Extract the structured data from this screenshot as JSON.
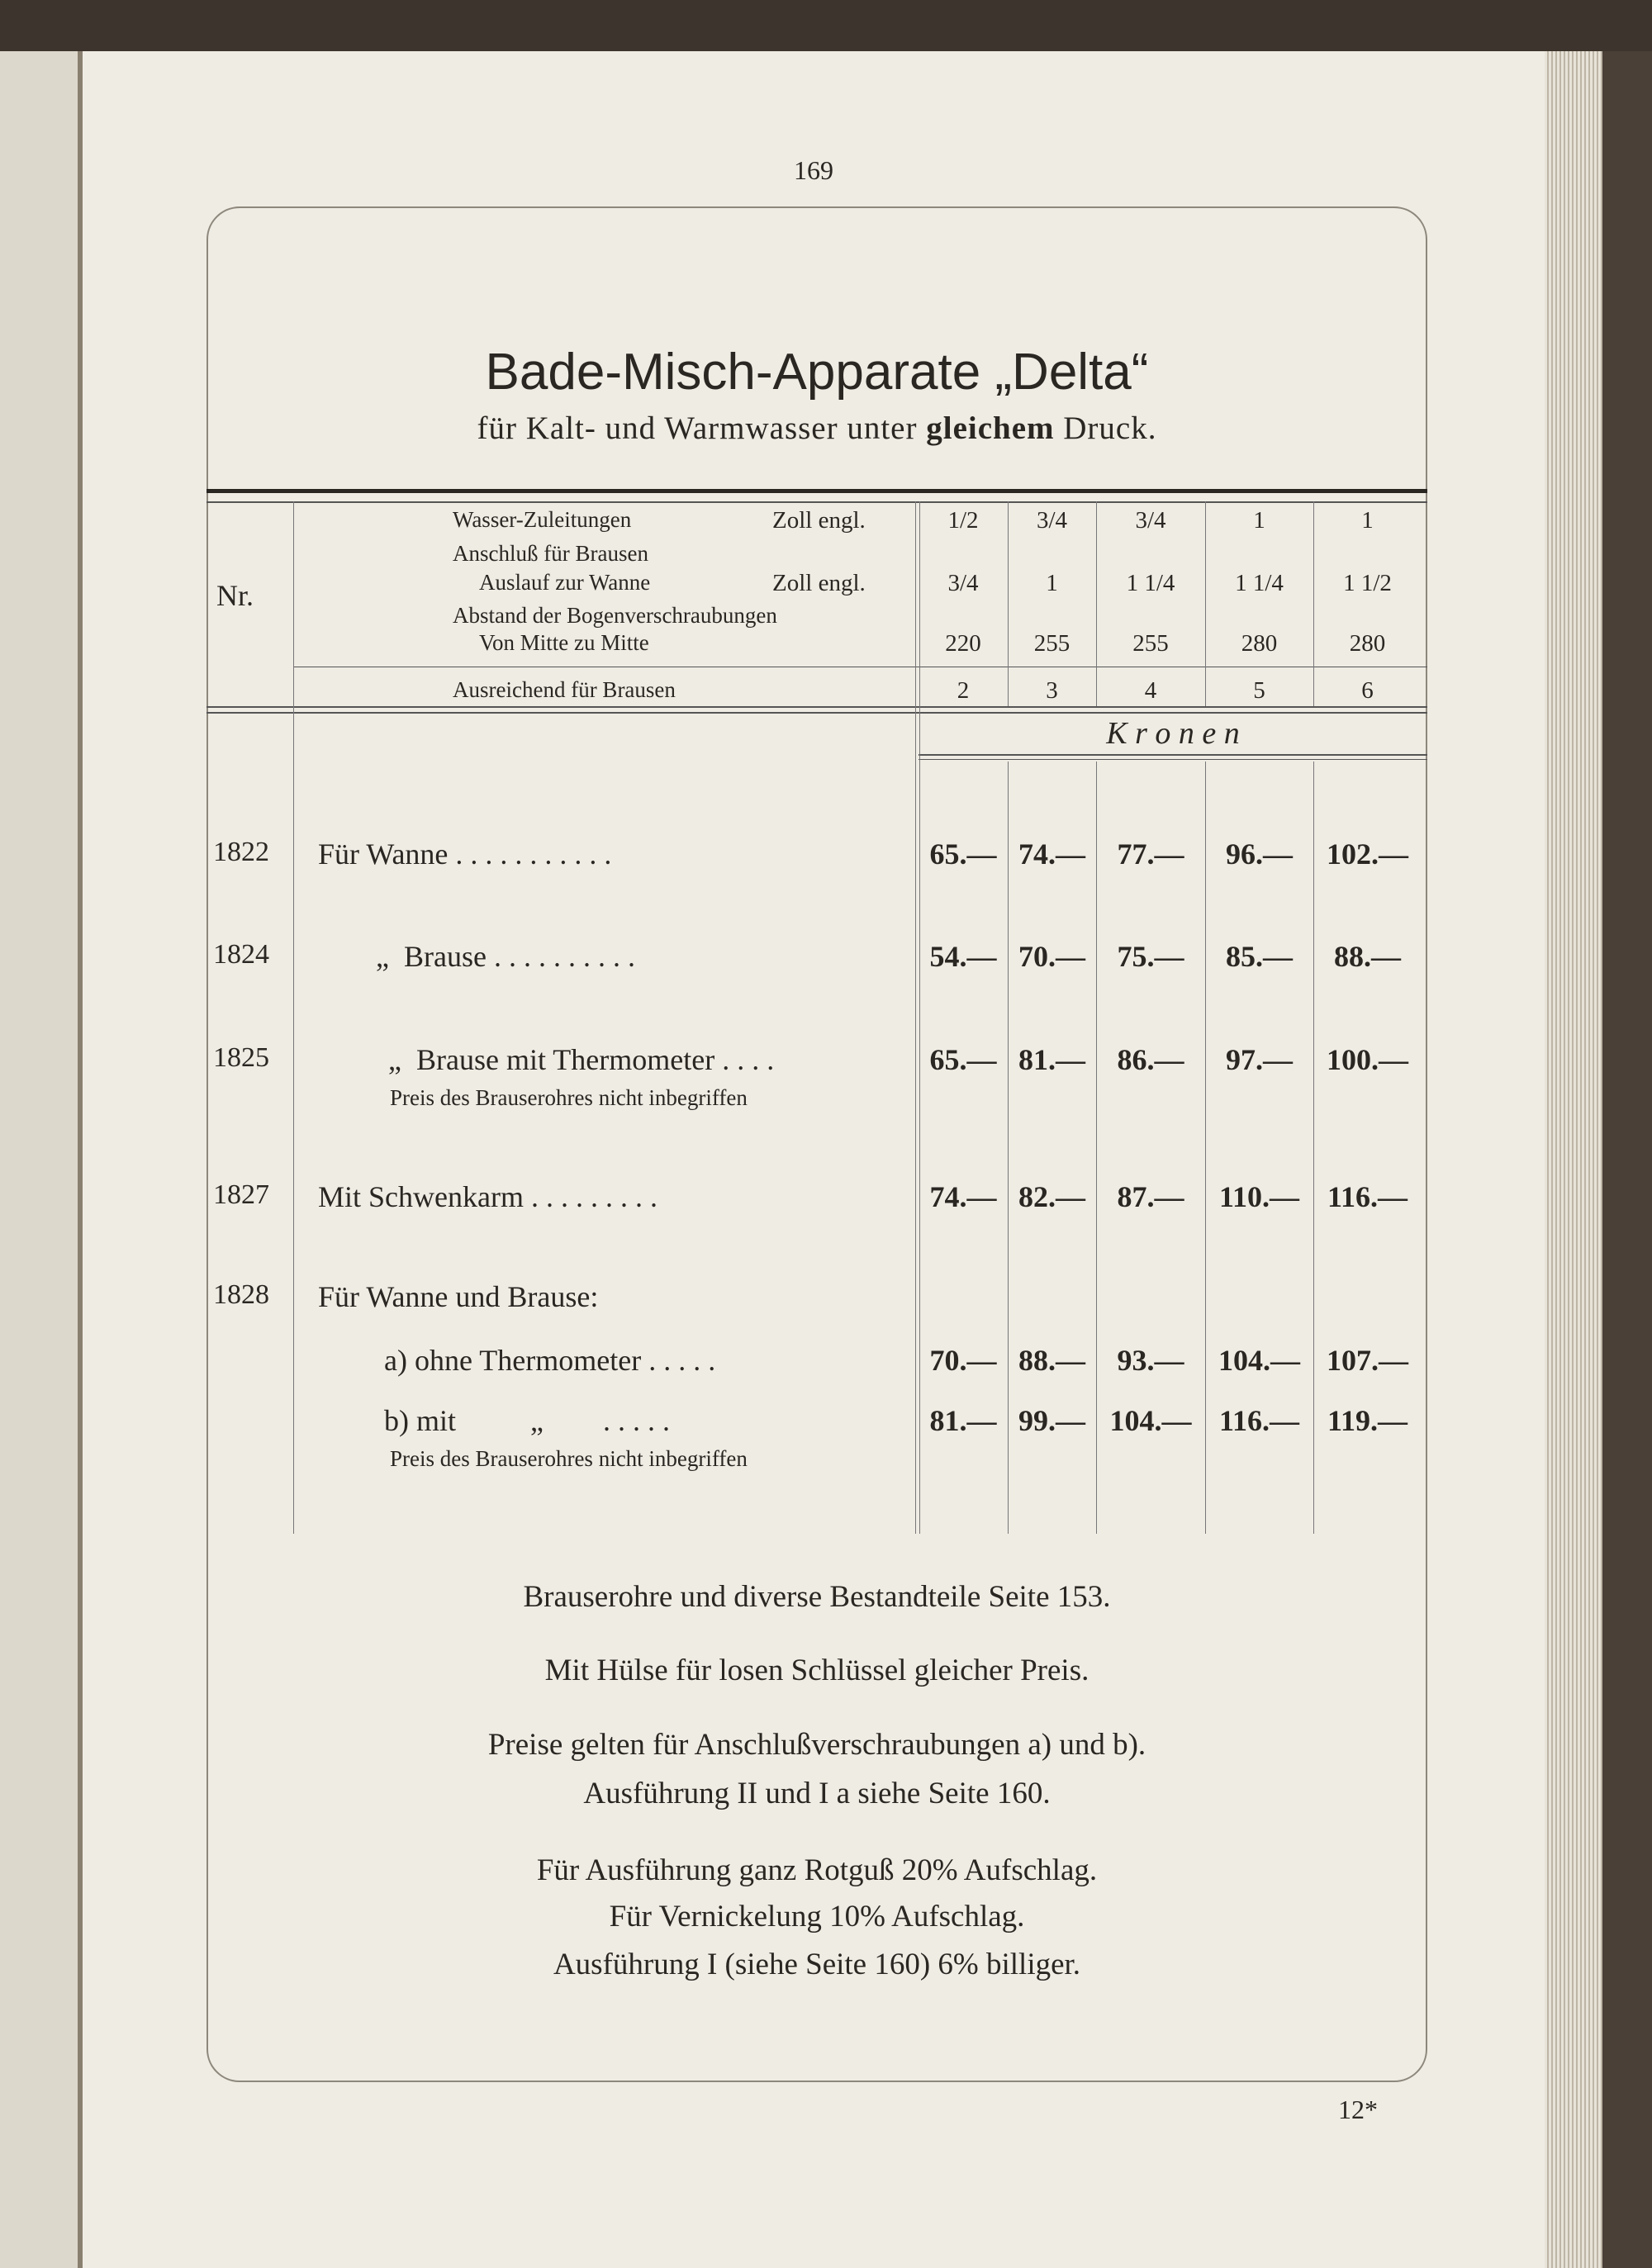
{
  "page_number": "169",
  "folio": "12*",
  "title": "Bade-Misch-Apparate „Delta“",
  "subtitle": {
    "pre": "für Kalt- und Warmwasser unter ",
    "bold": "gleichem",
    "post": " Druck."
  },
  "table": {
    "nr_header": "Nr.",
    "spec_rows": [
      {
        "label": "Wasser-Zuleitungen",
        "unit": "Zoll engl.",
        "values": [
          "1/2",
          "3/4",
          "3/4",
          "1",
          "1"
        ]
      },
      {
        "label": "Anschluß für Brausen",
        "unit": "",
        "values": []
      },
      {
        "label": "Auslauf zur Wanne",
        "unit": "Zoll engl.",
        "values": [
          "3/4",
          "1",
          "1 1/4",
          "1 1/4",
          "1 1/2"
        ]
      },
      {
        "label": "Abstand der Bogenverschraubungen",
        "unit": "",
        "values": []
      },
      {
        "label": "Von Mitte zu Mitte",
        "unit": "",
        "values": [
          "220",
          "255",
          "255",
          "280",
          "280"
        ]
      }
    ],
    "sufficient_row": {
      "label": "Ausreichend für Brausen",
      "values": [
        "2",
        "3",
        "4",
        "5",
        "6"
      ]
    },
    "currency": "K r o n e n",
    "items": [
      {
        "nr": "1822",
        "label": "Für Wanne . . . . . . . . . . .",
        "prices": [
          "65.—",
          "74.—",
          "77.—",
          "96.—",
          "102.—"
        ]
      },
      {
        "nr": "1824",
        "label": "„  Brause . . . . . . . . . .",
        "prices": [
          "54.—",
          "70.—",
          "75.—",
          "85.—",
          "88.—"
        ]
      },
      {
        "nr": "1825",
        "label": "„  Brause mit Thermometer . . . .",
        "prices": [
          "65.—",
          "81.—",
          "86.—",
          "97.—",
          "100.—"
        ],
        "note": "Preis des Brauserohres nicht inbegriffen"
      },
      {
        "nr": "1827",
        "label": "Mit Schwenkarm . . . . . . . . .",
        "prices": [
          "74.—",
          "82.—",
          "87.—",
          "110.—",
          "116.—"
        ]
      },
      {
        "nr": "1828",
        "label": "Für Wanne und Brause:",
        "prices": []
      },
      {
        "nr": "",
        "label": "a) ohne Thermometer . . . . .",
        "prices": [
          "70.—",
          "88.—",
          "93.—",
          "104.—",
          "107.—"
        ]
      },
      {
        "nr": "",
        "label": "b) mit          „        . . . . .",
        "prices": [
          "81.—",
          "99.—",
          "104.—",
          "116.—",
          "119.—"
        ],
        "note": "Preis des Brauserohres nicht inbegriffen"
      }
    ]
  },
  "footnotes": [
    "Brauserohre und diverse Bestandteile Seite 153.",
    "Mit Hülse für losen Schlüssel gleicher Preis.",
    "Preise gelten für Anschlußverschraubungen a) und b).",
    "Ausführung II und I a siehe Seite 160.",
    "Für Ausführung ganz Rotguß 20% Aufschlag.",
    "Für Vernickelung 10% Aufschlag.",
    "Ausführung I (siehe Seite 160) 6% billiger."
  ]
}
